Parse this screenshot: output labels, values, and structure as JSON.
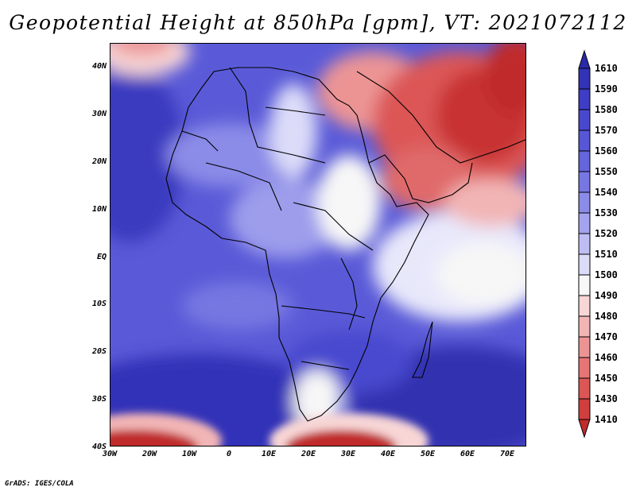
{
  "title": "Geopotential Height at 850hPa [gpm], VT: 2021072112",
  "credit": "GrADS: IGES/COLA",
  "map": {
    "region": "Africa, Arabian Peninsula and surrounding oceans",
    "lon_range": [
      -30,
      75
    ],
    "lat_range": [
      -40,
      45
    ],
    "lat_labels": [
      "40N",
      "30N",
      "20N",
      "10N",
      "EQ",
      "10S",
      "20S",
      "30S",
      "40S"
    ],
    "lon_labels": [
      "30W",
      "20W",
      "10W",
      "0",
      "10E",
      "20E",
      "30E",
      "40E",
      "50E",
      "60E",
      "70E"
    ]
  },
  "colorbar": {
    "labels": [
      "1610",
      "1590",
      "1580",
      "1570",
      "1560",
      "1550",
      "1540",
      "1530",
      "1520",
      "1510",
      "1500",
      "1490",
      "1480",
      "1470",
      "1460",
      "1450",
      "1430",
      "1410"
    ],
    "colors": [
      "#2a2aa8",
      "#3333b8",
      "#3d3dc6",
      "#4848cf",
      "#5656d6",
      "#6565dc",
      "#7777e2",
      "#8b8be8",
      "#a3a3ee",
      "#bebef4",
      "#dcdcf9",
      "#f7f7f7",
      "#f8d6d6",
      "#f2b5b5",
      "#ec9494",
      "#e67575",
      "#dc5656",
      "#d13e3e",
      "#c02b2b"
    ]
  }
}
